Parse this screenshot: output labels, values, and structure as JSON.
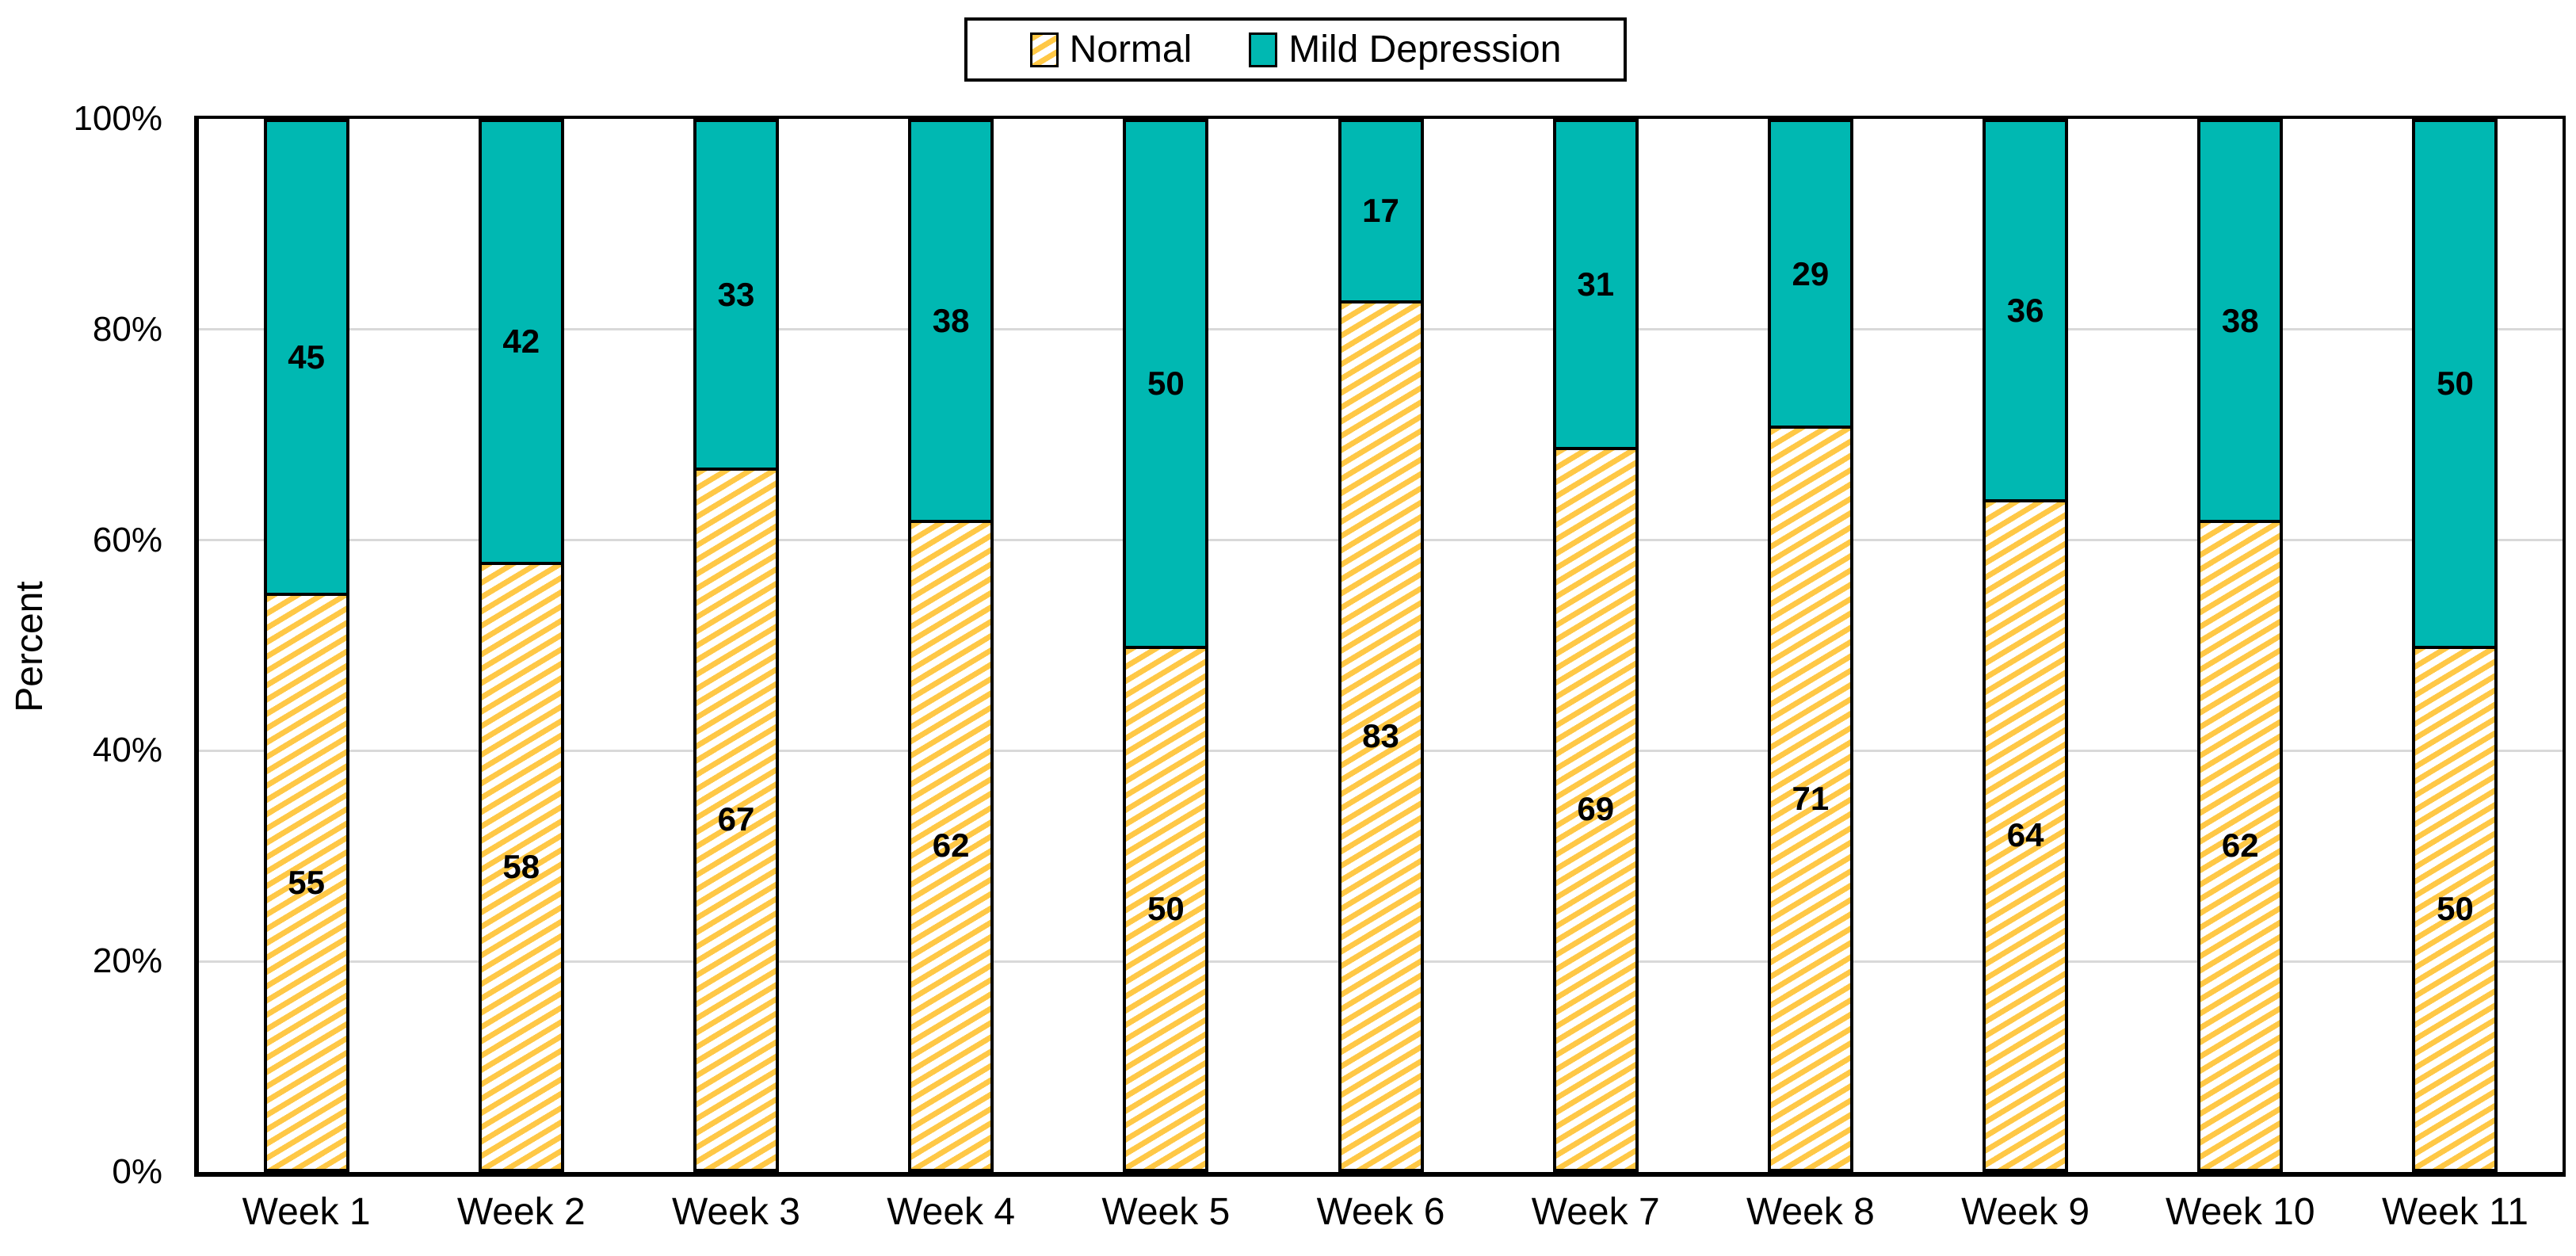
{
  "legend": {
    "items": [
      {
        "label": "Normal",
        "swatch": "yellow-diagonal-hatch"
      },
      {
        "label": "Mild Depression",
        "swatch": "teal-solid"
      }
    ]
  },
  "axes": {
    "y_title": "Percent",
    "y_ticks": [
      "0%",
      "20%",
      "40%",
      "60%",
      "80%",
      "100%"
    ],
    "x_labels": [
      "Week 1",
      "Week 2",
      "Week 3",
      "Week 4",
      "Week 5",
      "Week 6",
      "Week 7",
      "Week 8",
      "Week 9",
      "Week 10",
      "Week 11"
    ]
  },
  "chart_data": {
    "type": "bar",
    "stacked": true,
    "unit": "percent",
    "title": "",
    "xlabel": "",
    "ylabel": "Percent",
    "ylim": [
      0,
      100
    ],
    "grid": true,
    "gridlines_at": [
      20,
      40,
      60,
      80
    ],
    "legend_position": "top-center",
    "categories": [
      "Week 1",
      "Week 2",
      "Week 3",
      "Week 4",
      "Week 5",
      "Week 6",
      "Week 7",
      "Week 8",
      "Week 9",
      "Week 10",
      "Week 11"
    ],
    "series": [
      {
        "name": "Normal",
        "position": "bottom",
        "fill": "diagonal-hatch",
        "color": "#FFC846",
        "values": [
          55,
          58,
          67,
          62,
          50,
          83,
          69,
          71,
          64,
          62,
          50
        ]
      },
      {
        "name": "Mild Depression",
        "position": "top",
        "fill": "solid",
        "color": "#00B8B2",
        "values": [
          45,
          42,
          33,
          38,
          50,
          17,
          31,
          29,
          36,
          38,
          50
        ]
      }
    ]
  },
  "colors": {
    "normal_stripe": "#FFC846",
    "mild_fill": "#00B8B2",
    "gridline": "#D9D9D9",
    "axis": "#000000",
    "background": "#FFFFFF",
    "label_text": "#000000"
  }
}
